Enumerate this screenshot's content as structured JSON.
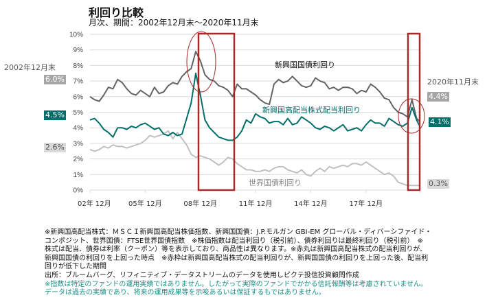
{
  "header": {
    "title": "利回り比較",
    "subtitle": "月次、期間：2002年12月末～2020年11月末"
  },
  "left_labels": {
    "date": "2002年12月末",
    "em_bond_start": "6.0%",
    "em_equity_start": "4.5%",
    "world_bond_start": "2.6%"
  },
  "right_labels": {
    "date": "2020年11月末",
    "em_bond_end": "4.4%",
    "em_equity_end": "4.1%",
    "world_bond_end": "0.3%"
  },
  "colors": {
    "em_bond": "#636363",
    "em_equity": "#006e69",
    "world_bond": "#c0c0c0",
    "highlight": "#a52a2a",
    "start_em_bond_bg": "#a6a6a6",
    "start_world_bond_bg": "#d9d9d9",
    "note_teal": "#1a8f86"
  },
  "chart_data": {
    "type": "line",
    "title": "利回り比較",
    "subtitle": "月次、期間：2002年12月末～2020年11月末",
    "xlabel": "",
    "ylabel": "",
    "ylim": [
      0,
      10
    ],
    "y_ticks": [
      "0%",
      "1%",
      "2%",
      "3%",
      "4%",
      "5%",
      "6%",
      "7%",
      "8%",
      "9%",
      "10%"
    ],
    "x_ticks": [
      "02年 12月",
      "05年 12月",
      "08年 12月",
      "11年 12月",
      "14年 12月",
      "17年 12月"
    ],
    "x_range_months": [
      0,
      215
    ],
    "x_step_months": 3,
    "grid": true,
    "legend": "inline",
    "series": [
      {
        "name": "新興国国債利回り",
        "key": "em_bond",
        "values": [
          6.0,
          5.8,
          5.7,
          6.1,
          6.6,
          6.5,
          7.1,
          6.9,
          6.5,
          6.2,
          6.1,
          6.4,
          6.2,
          6.0,
          6.6,
          6.2,
          6.3,
          6.7,
          6.9,
          6.8,
          7.3,
          7.6,
          7.8,
          8.9,
          8.3,
          7.4,
          7.1,
          7.0,
          6.7,
          6.6,
          6.4,
          6.0,
          6.8,
          6.5,
          6.5,
          6.3,
          6.1,
          5.8,
          5.6,
          5.5,
          6.8,
          7.1,
          6.9,
          7.0,
          7.3,
          7.0,
          6.7,
          6.6,
          6.7,
          7.2,
          7.0,
          6.9,
          6.5,
          6.6,
          6.4,
          6.6,
          6.6,
          6.5,
          6.2,
          6.4,
          6.3,
          6.8,
          6.6,
          6.3,
          5.9,
          5.8,
          5.3,
          5.0,
          4.9,
          4.7,
          5.8,
          4.6,
          4.4
        ]
      },
      {
        "name": "新興国高配当株式配当利回り",
        "key": "em_equity",
        "values": [
          4.5,
          4.6,
          4.3,
          3.9,
          3.7,
          3.4,
          4.0,
          4.0,
          3.9,
          4.1,
          4.0,
          4.2,
          4.3,
          4.1,
          3.9,
          4.0,
          3.6,
          3.5,
          3.7,
          3.5,
          3.6,
          4.6,
          5.6,
          7.5,
          6.1,
          4.5,
          4.0,
          3.7,
          3.4,
          3.3,
          3.2,
          3.2,
          3.4,
          3.8,
          4.5,
          4.3,
          4.9,
          4.7,
          4.6,
          4.3,
          4.4,
          4.4,
          4.2,
          4.6,
          4.2,
          4.3,
          4.7,
          4.5,
          4.3,
          4.0,
          3.9,
          4.1,
          4.0,
          3.8,
          4.0,
          4.2,
          3.8,
          3.9,
          4.0,
          3.8,
          4.2,
          4.5,
          4.3,
          4.3,
          4.1,
          4.6,
          4.4,
          4.2,
          4.1,
          4.3,
          5.3,
          4.5,
          4.1
        ]
      },
      {
        "name": "世界国債利回り",
        "key": "world_bond",
        "values": [
          2.6,
          2.5,
          2.6,
          2.8,
          2.7,
          2.9,
          2.8,
          2.8,
          2.7,
          2.8,
          2.9,
          3.0,
          3.2,
          3.5,
          3.4,
          3.5,
          3.6,
          3.8,
          3.3,
          3.7,
          3.3,
          2.9,
          2.3,
          2.1,
          2.2,
          2.1,
          2.0,
          1.8,
          1.6,
          1.8,
          2.1,
          2.0,
          1.7,
          1.5,
          1.3,
          1.3,
          1.2,
          1.2,
          1.3,
          1.2,
          1.4,
          1.5,
          1.5,
          1.3,
          1.2,
          1.1,
          1.3,
          1.0,
          0.9,
          1.2,
          1.4,
          1.2,
          1.5,
          1.4,
          1.5,
          1.6,
          1.5,
          1.7,
          1.7,
          1.6,
          1.8,
          1.6,
          1.4,
          1.2,
          1.0,
          1.1,
          0.9,
          0.5,
          0.4,
          0.3,
          0.3,
          0.3,
          0.3
        ]
      }
    ],
    "annotations": {
      "red_boxes_period": [
        "2008/10 - 2010/12",
        "2020/01 - 2020/11"
      ],
      "red_circles": [
        "2008",
        "2020"
      ]
    }
  },
  "notes": {
    "line1": "※新興国高配当株式：ＭＳＣＩ新興国高配当株価指数、新興国国債：J.P.モルガン GBI-EM グローバル・ディバーシファイド・",
    "line2": "コンポジット、世界国債：FTSE世界国債指数　※株価指数は配当利回り（税引前）、債券利回りは最終利回り（税引前）　※",
    "line3": "株式は配当、債券は利率（クーポン）等を表示しており、商品性は異なります。※赤丸は新興国高配当株式の配当利回りが、",
    "line4": "新興国国債の利回りを上回った時点　※赤枠は新興国高配当株式の配当利回りが、新興国国債の利回りを上回った後、配当利",
    "line5": "回りが低下した期間",
    "source": "出所：ブルームバーグ、リフィニティブ・データストリームのデータを使用しピクテ投信投資顧問作成",
    "disclaimer1": "※指数は特定のファンドの運用実績ではありません。したがって実際のファンドでかかる信託報酬等は考慮されていません。",
    "disclaimer2": "データは過去の実績であり、将来の運用成果等を示唆あるいは保証するもではありません。"
  }
}
